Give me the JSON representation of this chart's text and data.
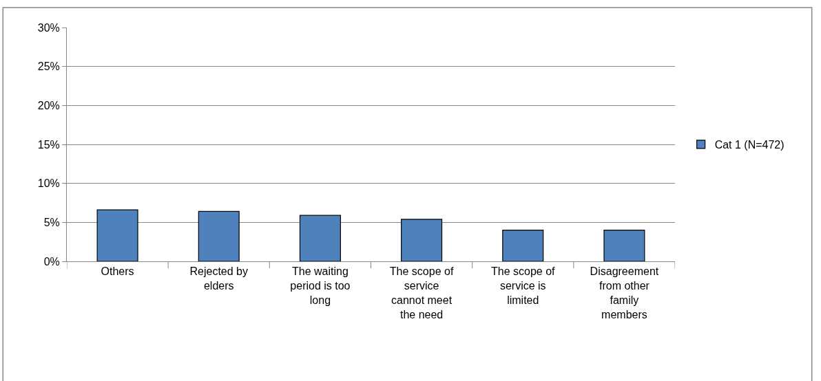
{
  "chart_data": {
    "type": "bar",
    "categories": [
      "Others",
      "Rejected by elders",
      "The waiting period is too long",
      "The scope of service cannot meet the need",
      "The scope of service is limited",
      "Disagreement from other family members"
    ],
    "series": [
      {
        "name": "Cat 1 (N=472)",
        "color": "#4f81bd",
        "values": [
          6.6,
          6.4,
          5.9,
          5.4,
          4.0,
          4.0
        ]
      }
    ],
    "ylim": [
      0,
      30
    ],
    "yticks": [
      {
        "value": 0,
        "label": "0%"
      },
      {
        "value": 5,
        "label": "5%"
      },
      {
        "value": 10,
        "label": "10%"
      },
      {
        "value": 15,
        "label": "15%"
      },
      {
        "value": 20,
        "label": "20%"
      },
      {
        "value": 25,
        "label": "25%"
      },
      {
        "value": 30,
        "label": "30%"
      }
    ],
    "grid": "y",
    "legend": "right"
  }
}
